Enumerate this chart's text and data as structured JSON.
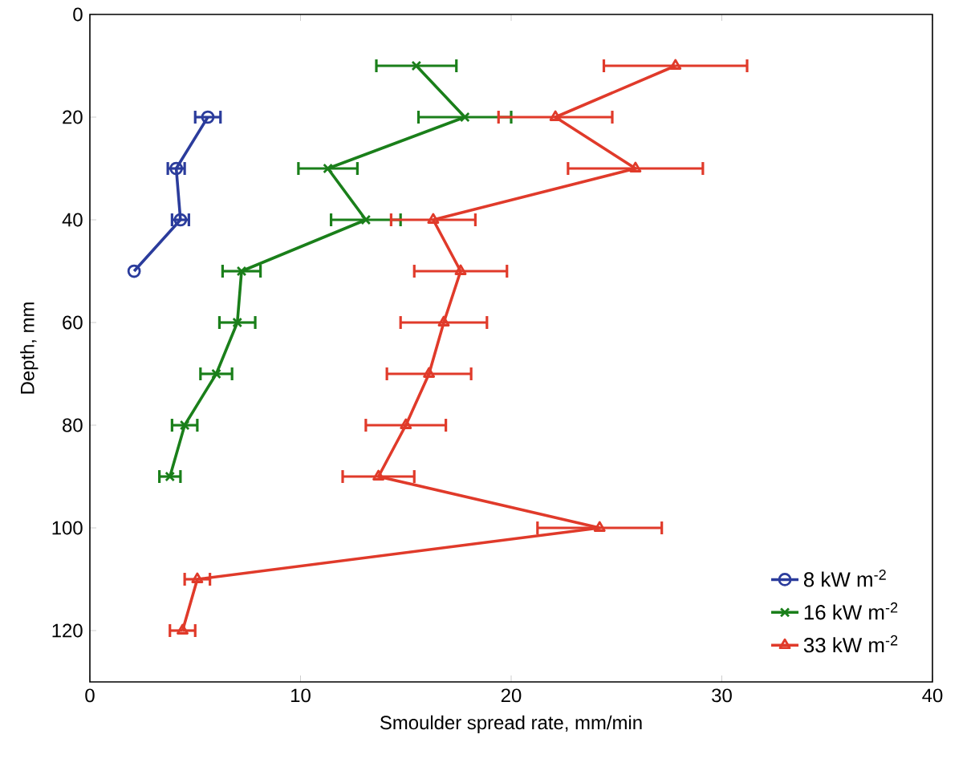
{
  "chart_data": {
    "type": "line",
    "xlabel": "Smoulder spread rate, mm/min",
    "ylabel": "Depth, mm",
    "xlim": [
      0,
      40
    ],
    "xticks": [
      0,
      10,
      20,
      30,
      40
    ],
    "ylim": [
      130,
      0
    ],
    "yticks": [
      0,
      20,
      40,
      60,
      80,
      100,
      120
    ],
    "legend": "bottom right",
    "grid": false,
    "line_style": "solid",
    "series": [
      {
        "name": "8 kW m$^{-2}$",
        "color": "#2b3c9c",
        "marker": "circle",
        "x": [
          5.6,
          4.1,
          4.3,
          2.1
        ],
        "values": [
          20,
          30,
          40,
          50
        ],
        "xerrors": [
          0.6,
          0.4,
          0.4,
          null
        ]
      },
      {
        "name": "16 kW m$^{-2}$",
        "color": "#1a7f1a",
        "marker": "cross",
        "x": [
          15.5,
          17.8,
          11.3,
          13.1,
          7.2,
          7.0,
          6.0,
          4.5,
          3.8
        ],
        "values": [
          10,
          20,
          30,
          40,
          50,
          60,
          70,
          80,
          90
        ],
        "xerrors": [
          1.9,
          2.2,
          1.4,
          1.65,
          0.9,
          0.85,
          0.75,
          0.6,
          0.5
        ]
      },
      {
        "name": "33 kW m$^{-2}$",
        "color": "#e03a2a",
        "marker": "triangle",
        "x": [
          27.8,
          22.1,
          25.9,
          16.3,
          17.6,
          16.8,
          16.1,
          15.0,
          13.7,
          24.2,
          5.1,
          4.4
        ],
        "values": [
          10,
          20,
          30,
          40,
          50,
          60,
          70,
          80,
          90,
          100,
          110,
          120
        ],
        "xerrors": [
          3.4,
          2.7,
          3.2,
          2.0,
          2.2,
          2.05,
          2.0,
          1.9,
          1.7,
          2.95,
          0.6,
          0.6
        ]
      }
    ]
  }
}
